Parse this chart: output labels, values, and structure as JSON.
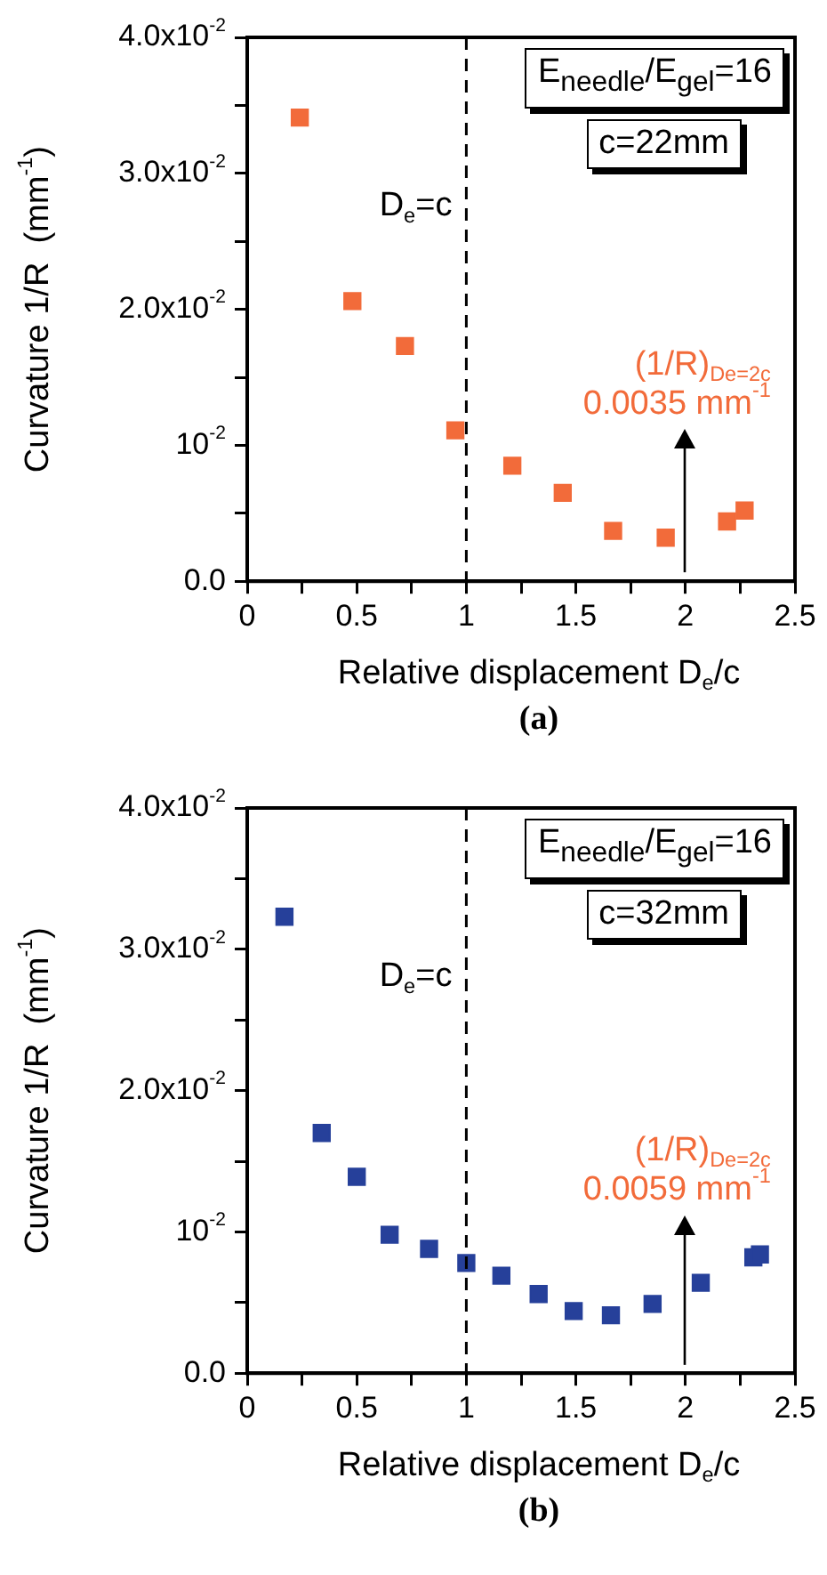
{
  "chart_data": [
    {
      "type": "scatter",
      "xlabel": "Relative displacement D$_{e}$/c",
      "ylabel": "Curvature 1/R  (mm$^{-1}$)",
      "marker": "square",
      "legend": false,
      "series": [
        {
          "color": "#f26b3a",
          "x": [
            0.24,
            0.48,
            0.72,
            0.95,
            1.21,
            1.44,
            1.67,
            1.91,
            2.19,
            2.27
          ],
          "values": [
            0.0341,
            0.0206,
            0.0173,
            0.0111,
            0.0085,
            0.0065,
            0.0037,
            0.0032,
            0.0044,
            0.0052
          ]
        }
      ],
      "xlim": [
        0,
        2.5
      ],
      "xticks": [
        0,
        {
          "value": 0.25,
          "label": null
        },
        0.5,
        {
          "value": 0.75,
          "label": null
        },
        1,
        {
          "value": 1.25,
          "label": null
        },
        1.5,
        {
          "value": 1.75,
          "label": null
        },
        2,
        {
          "value": 2.25,
          "label": null
        },
        2.5
      ],
      "ylim": [
        0,
        0.04
      ],
      "yticks": [
        {
          "value": 0,
          "label": "0.0"
        },
        {
          "value": 0.005,
          "label": null
        },
        {
          "value": 0.01,
          "label": "10$^{-2}$"
        },
        {
          "value": 0.015,
          "label": null
        },
        {
          "value": 0.02,
          "label": "2.0x10$^{-2}$"
        },
        {
          "value": 0.025,
          "label": null
        },
        {
          "value": 0.03,
          "label": "3.0x10$^{-2}$"
        },
        {
          "value": 0.035,
          "label": null
        },
        {
          "value": 0.04,
          "label": "4.0x10$^{-2}$"
        }
      ],
      "ref_lines": [
        {
          "axis": "x",
          "value": 1,
          "label": "D$_{e}$=c",
          "line_style": "dashed",
          "color": "#000000"
        }
      ],
      "annotations": [
        "E$_{needle}$/E$_{gel}$=16",
        "c=22mm",
        "(1/R)$_{De=2c}$\n0.0035 mm$^{-1}$",
        "(a)"
      ]
    },
    {
      "type": "scatter",
      "xlabel": "Relative displacement D$_{e}$/c",
      "ylabel": "Curvature 1/R  (mm$^{-1}$)",
      "marker": "square",
      "legend": false,
      "series": [
        {
          "color": "#26409a",
          "x": [
            0.17,
            0.34,
            0.5,
            0.65,
            0.83,
            1.0,
            1.16,
            1.33,
            1.49,
            1.66,
            1.85,
            2.07,
            2.31,
            2.34
          ],
          "values": [
            0.0323,
            0.017,
            0.0139,
            0.0098,
            0.0088,
            0.0078,
            0.0069,
            0.0056,
            0.0044,
            0.0041,
            0.0049,
            0.0064,
            0.0082,
            0.0084
          ]
        }
      ],
      "xlim": [
        0,
        2.5
      ],
      "xticks": [
        0,
        {
          "value": 0.25,
          "label": null
        },
        0.5,
        {
          "value": 0.75,
          "label": null
        },
        1,
        {
          "value": 1.25,
          "label": null
        },
        1.5,
        {
          "value": 1.75,
          "label": null
        },
        2,
        {
          "value": 2.25,
          "label": null
        },
        2.5
      ],
      "ylim": [
        0,
        0.04
      ],
      "yticks": [
        {
          "value": 0,
          "label": "0.0"
        },
        {
          "value": 0.005,
          "label": null
        },
        {
          "value": 0.01,
          "label": "10$^{-2}$"
        },
        {
          "value": 0.015,
          "label": null
        },
        {
          "value": 0.02,
          "label": "2.0x10$^{-2}$"
        },
        {
          "value": 0.025,
          "label": null
        },
        {
          "value": 0.03,
          "label": "3.0x10$^{-2}$"
        },
        {
          "value": 0.035,
          "label": null
        },
        {
          "value": 0.04,
          "label": "4.0x10$^{-2}$"
        }
      ],
      "ref_lines": [
        {
          "axis": "x",
          "value": 1,
          "label": "D$_{e}$=c",
          "line_style": "dashed",
          "color": "#000000"
        }
      ],
      "annotations": [
        "E$_{needle}$/E$_{gel}$=16",
        "c=32mm",
        "(1/R)$_{De=2c}$\n0.0059 mm$^{-1}$",
        "(b)"
      ]
    }
  ]
}
